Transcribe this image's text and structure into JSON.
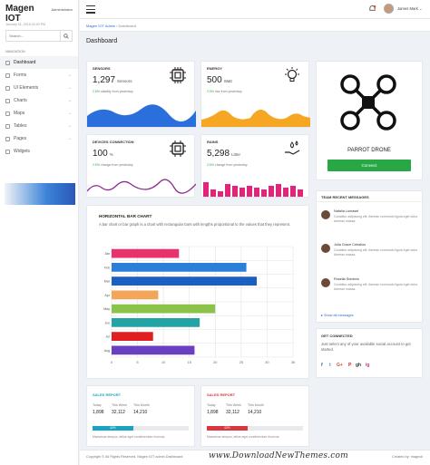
{
  "brand": {
    "name": "Magen IOT",
    "role": "Administrator"
  },
  "sidebar": {
    "date": "January 01, 2018 02:00 PM",
    "search_placeholder": "Search...",
    "nav_label": "NAVIGATION",
    "items": [
      {
        "label": "Dashboard",
        "icon": "dashboard-icon"
      },
      {
        "label": "Forms",
        "icon": "forms-icon"
      },
      {
        "label": "UI Elements",
        "icon": "ui-icon"
      },
      {
        "label": "Charts",
        "icon": "charts-icon"
      },
      {
        "label": "Maps",
        "icon": "maps-icon"
      },
      {
        "label": "Tables",
        "icon": "tables-icon"
      },
      {
        "label": "Pages",
        "icon": "pages-icon"
      },
      {
        "label": "Widgets",
        "icon": "widgets-icon"
      }
    ]
  },
  "topbar": {
    "user": "James Mark"
  },
  "breadcrumb": {
    "home": "Magen IOT Admin",
    "current": "Dashboard"
  },
  "page_title": "Dashboard",
  "cards": {
    "sensors": {
      "label": "SENSORS",
      "value": "1,297",
      "unit": "Sensors",
      "pct": "2.5%",
      "note": "stability from yesterday",
      "color": "#2a6fdb"
    },
    "energy": {
      "label": "ENERGY",
      "value": "500",
      "unit": "Watt",
      "pct": "2.5%",
      "note": "rise from yesterday",
      "color": "#f5a623"
    },
    "devices": {
      "label": "DEVICES CONNECTION",
      "value": "100",
      "unit": "%",
      "pct": "2.5%",
      "note": "change from yesterday",
      "color": "#8e2c8e"
    },
    "rains": {
      "label": "RAINS",
      "value": "5,298",
      "unit": "Litter",
      "pct": "2.5%",
      "note": "change from yesterday",
      "color": "#e0257a"
    }
  },
  "drone": {
    "name": "PARROT DRONE",
    "button": "Connect"
  },
  "hbar": {
    "title": "HORIZONTAL BAR CHART",
    "desc": "A bar chart or bar graph is a chart with rectangular bars with lengths proportional to the values that they represent."
  },
  "chart_data": {
    "type": "bar",
    "orientation": "horizontal",
    "categories": [
      "Jan",
      "Feb",
      "Mar",
      "Apr",
      "May",
      "Jun",
      "Jul",
      "Aug"
    ],
    "values": [
      13,
      26,
      28,
      9,
      20,
      17,
      8,
      16
    ],
    "colors": [
      "#e8326b",
      "#2a7fd8",
      "#1a5fc4",
      "#f2a65a",
      "#8bc34a",
      "#22a3a6",
      "#e02020",
      "#6a3fc1"
    ],
    "xticks": [
      "0",
      "5",
      "10",
      "15",
      "20",
      "25",
      "30",
      "35"
    ],
    "xlim": [
      0,
      35
    ],
    "grid": true
  },
  "team": {
    "title": "TEAM RECENT MESSAGES",
    "messages": [
      {
        "name": "Natalia Lumasel",
        "text": "Curabitur adipiscing elit. Aenean commodo ligula eget dolor. Aenean massa."
      },
      {
        "name": "Julia Grace Ceballos",
        "text": "Curabitur adipiscing elit. Aenean commodo ligula eget dolor. Aenean massa."
      },
      {
        "name": "Rosella Sombrio",
        "text": "Curabitur adipiscing elit. Aenean commodo ligula eget dolor. Aenean massa."
      }
    ],
    "show_all": "Show all messages"
  },
  "connected": {
    "title": "GET CONNECTED",
    "text": "Just select any of your available social account to get started.",
    "icons": [
      "f",
      "t",
      "G+",
      "P",
      "gh",
      "ig"
    ]
  },
  "sales": [
    {
      "title": "SALES REPORT",
      "color": "#19a3c2",
      "cols": [
        "Today",
        "This Week",
        "This Month"
      ],
      "vals": [
        "1,898",
        "32,112",
        "14,210"
      ],
      "pct": 0.42,
      "pct_label": "42%",
      "note": "Maecenas tempus, tellus eget condimentum rhoncus."
    },
    {
      "title": "SALES REPORT",
      "color": "#d9363e",
      "cols": [
        "Today",
        "This Week",
        "This Month"
      ],
      "vals": [
        "1,898",
        "32,112",
        "14,210"
      ],
      "pct": 0.42,
      "pct_label": "42%",
      "note": "Maecenas tempus, tellus eget condimentum rhoncus."
    }
  ],
  "footer": {
    "copy": "Copyright © All Rights Reserved. Magen IOT admin Dashboard",
    "credit": "Created by: magnoli",
    "watermark": "www.DownloadNewThemes.com"
  }
}
